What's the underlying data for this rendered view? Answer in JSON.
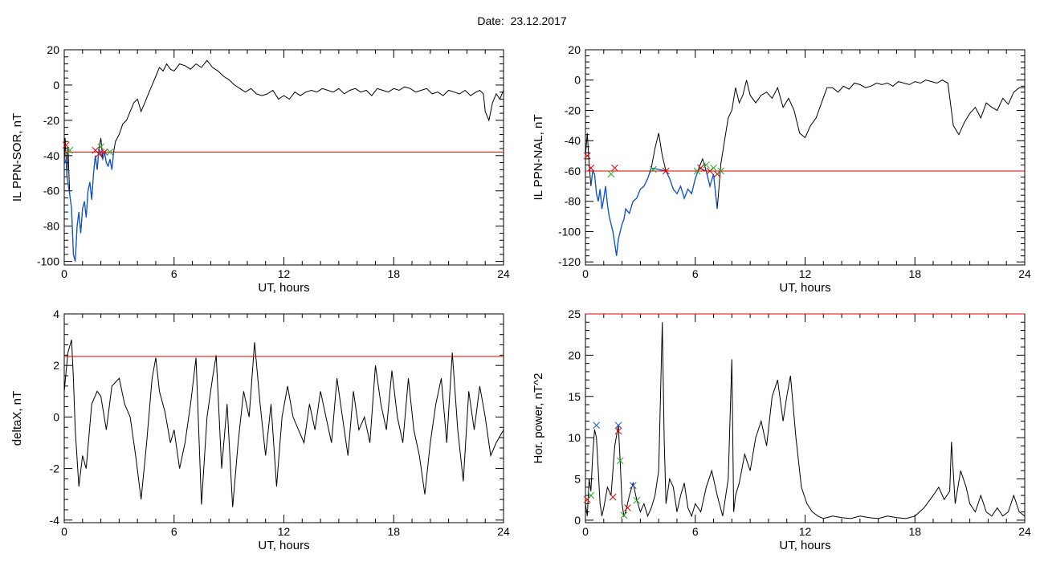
{
  "figure": {
    "date_label": "Date:",
    "date_value": "23.12.2017"
  },
  "colors": {
    "signal": "#000000",
    "threshold": "#e00000",
    "highlight": "#1155cc",
    "marker_red": "#e00000",
    "marker_green": "#22aa22",
    "marker_blue": "#2255dd"
  },
  "chart_data": [
    {
      "id": "sor",
      "type": "line",
      "xlabel": "UT, hours",
      "ylabel": "IL PPN-SOR, nT",
      "xlim": [
        0,
        24
      ],
      "ylim": [
        -102,
        20
      ],
      "xticks": [
        0,
        6,
        12,
        18,
        24
      ],
      "yticks": [
        -100,
        -80,
        -60,
        -40,
        -20,
        0,
        20
      ],
      "threshold": -38,
      "highlight_x": [
        0,
        2.7
      ],
      "series": [
        {
          "x": [
            0,
            0.05,
            0.1,
            0.15,
            0.2,
            0.3,
            0.4,
            0.5,
            0.6,
            0.7,
            0.8,
            0.9,
            1.0,
            1.1,
            1.2,
            1.3,
            1.4,
            1.5,
            1.6,
            1.7,
            1.8,
            1.9,
            2.0,
            2.1,
            2.2,
            2.3,
            2.4,
            2.5,
            2.6,
            2.7,
            2.8,
            3.0,
            3.2,
            3.4,
            3.6,
            3.8,
            4.0,
            4.2,
            4.4,
            4.6,
            4.8,
            5.0,
            5.2,
            5.4,
            5.6,
            5.8,
            6.0,
            6.3,
            6.6,
            6.9,
            7.2,
            7.5,
            7.8,
            8.1,
            8.4,
            8.7,
            9.0,
            9.3,
            9.6,
            9.9,
            10.2,
            10.5,
            10.8,
            11.1,
            11.4,
            11.7,
            12.0,
            12.3,
            12.6,
            12.9,
            13.2,
            13.5,
            13.8,
            14.1,
            14.4,
            14.7,
            15.0,
            15.3,
            15.6,
            15.9,
            16.2,
            16.5,
            16.8,
            17.1,
            17.4,
            17.7,
            18.0,
            18.3,
            18.6,
            18.9,
            19.2,
            19.5,
            19.8,
            20.1,
            20.4,
            20.7,
            21.0,
            21.3,
            21.6,
            21.9,
            22.2,
            22.5,
            22.7,
            22.9,
            23.0,
            23.2,
            23.4,
            23.6,
            23.8,
            24.0
          ],
          "y": [
            -45,
            -30,
            -42,
            -52,
            -35,
            -62,
            -70,
            -96,
            -100,
            -80,
            -72,
            -84,
            -70,
            -66,
            -75,
            -60,
            -55,
            -65,
            -50,
            -40,
            -48,
            -36,
            -30,
            -42,
            -38,
            -44,
            -46,
            -42,
            -48,
            -38,
            -32,
            -28,
            -22,
            -20,
            -15,
            -10,
            -8,
            -15,
            -10,
            -5,
            0,
            5,
            10,
            8,
            12,
            9,
            8,
            12,
            11,
            9,
            12,
            10,
            14,
            10,
            8,
            5,
            3,
            0,
            -2,
            -4,
            -2,
            -5,
            -6,
            -5,
            -3,
            -8,
            -6,
            -8,
            -4,
            -6,
            -4,
            -3,
            -4,
            -2,
            -3,
            -4,
            -2,
            -5,
            -3,
            -2,
            -4,
            -3,
            -6,
            -2,
            -3,
            -4,
            -2,
            -3,
            -1,
            -2,
            -4,
            -3,
            -2,
            -5,
            -4,
            -6,
            -3,
            -4,
            -5,
            -3,
            -6,
            -4,
            -3,
            -5,
            -15,
            -20,
            -10,
            -5,
            -8,
            -3
          ]
        }
      ],
      "markers": [
        {
          "x": 0.1,
          "y": -34,
          "color": "red"
        },
        {
          "x": 0.3,
          "y": -37,
          "color": "green"
        },
        {
          "x": 1.7,
          "y": -37,
          "color": "red"
        },
        {
          "x": 1.9,
          "y": -39,
          "color": "red"
        },
        {
          "x": 2.0,
          "y": -35,
          "color": "green"
        },
        {
          "x": 2.2,
          "y": -38,
          "color": "red"
        },
        {
          "x": 2.5,
          "y": -38,
          "color": "green"
        }
      ]
    },
    {
      "id": "nal",
      "type": "line",
      "xlabel": "UT, hours",
      "ylabel": "IL PPN-NAL, nT",
      "xlim": [
        0,
        24
      ],
      "ylim": [
        -122,
        20
      ],
      "xticks": [
        0,
        6,
        12,
        18,
        24
      ],
      "yticks": [
        -120,
        -100,
        -80,
        -60,
        -40,
        -20,
        0,
        20
      ],
      "threshold": -60,
      "highlight_x": [
        0,
        7.5
      ],
      "series": [
        {
          "x": [
            0,
            0.1,
            0.2,
            0.3,
            0.4,
            0.5,
            0.6,
            0.7,
            0.8,
            0.9,
            1.0,
            1.1,
            1.2,
            1.3,
            1.4,
            1.5,
            1.6,
            1.7,
            1.8,
            1.9,
            2.0,
            2.1,
            2.2,
            2.4,
            2.6,
            2.8,
            3.0,
            3.2,
            3.4,
            3.6,
            3.8,
            4.0,
            4.2,
            4.4,
            4.6,
            4.8,
            5.0,
            5.2,
            5.4,
            5.6,
            5.8,
            6.0,
            6.2,
            6.4,
            6.6,
            6.8,
            7.0,
            7.2,
            7.4,
            7.6,
            7.8,
            8.0,
            8.2,
            8.4,
            8.6,
            8.8,
            9.0,
            9.3,
            9.6,
            9.9,
            10.2,
            10.5,
            10.8,
            11.1,
            11.4,
            11.7,
            12.0,
            12.3,
            12.6,
            12.9,
            13.2,
            13.5,
            13.8,
            14.1,
            14.4,
            14.7,
            15.0,
            15.3,
            15.6,
            15.9,
            16.2,
            16.5,
            16.8,
            17.1,
            17.4,
            17.7,
            18.0,
            18.3,
            18.6,
            18.9,
            19.2,
            19.5,
            19.8,
            20.1,
            20.4,
            20.7,
            21.0,
            21.3,
            21.6,
            21.9,
            22.2,
            22.5,
            22.8,
            23.1,
            23.4,
            23.7,
            24.0
          ],
          "y": [
            -50,
            -35,
            -55,
            -70,
            -60,
            -62,
            -75,
            -80,
            -72,
            -85,
            -78,
            -70,
            -82,
            -90,
            -95,
            -100,
            -108,
            -116,
            -105,
            -100,
            -95,
            -92,
            -85,
            -88,
            -80,
            -78,
            -72,
            -70,
            -65,
            -58,
            -45,
            -35,
            -50,
            -60,
            -65,
            -72,
            -75,
            -70,
            -78,
            -72,
            -75,
            -65,
            -58,
            -52,
            -60,
            -70,
            -62,
            -85,
            -55,
            -40,
            -25,
            -20,
            -5,
            -15,
            -10,
            0,
            -10,
            -15,
            -10,
            -8,
            -12,
            -5,
            -18,
            -12,
            -20,
            -35,
            -38,
            -30,
            -25,
            -15,
            -5,
            -5,
            -8,
            -4,
            -6,
            -2,
            -3,
            -5,
            -4,
            -2,
            -3,
            -2,
            -4,
            -1,
            -2,
            -3,
            -1,
            -2,
            0,
            -1,
            -2,
            0,
            -2,
            -30,
            -36,
            -28,
            -22,
            -18,
            -25,
            -15,
            -18,
            -20,
            -12,
            -16,
            -8,
            -5,
            -5
          ]
        }
      ],
      "markers": [
        {
          "x": 0.1,
          "y": -50,
          "color": "red"
        },
        {
          "x": 0.3,
          "y": -58,
          "color": "red"
        },
        {
          "x": 1.4,
          "y": -62,
          "color": "green"
        },
        {
          "x": 1.6,
          "y": -58,
          "color": "red"
        },
        {
          "x": 3.7,
          "y": -59,
          "color": "green"
        },
        {
          "x": 4.4,
          "y": -60,
          "color": "red"
        },
        {
          "x": 6.1,
          "y": -60,
          "color": "green"
        },
        {
          "x": 6.3,
          "y": -58,
          "color": "red"
        },
        {
          "x": 6.6,
          "y": -56,
          "color": "green"
        },
        {
          "x": 6.8,
          "y": -60,
          "color": "red"
        },
        {
          "x": 7.0,
          "y": -58,
          "color": "green"
        },
        {
          "x": 7.2,
          "y": -62,
          "color": "red"
        },
        {
          "x": 7.4,
          "y": -60,
          "color": "green"
        }
      ]
    },
    {
      "id": "deltax",
      "type": "line",
      "xlabel": "UT, hours",
      "ylabel": "deltaX, nT",
      "xlim": [
        0,
        24
      ],
      "ylim": [
        -4.1,
        4
      ],
      "xticks": [
        0,
        6,
        12,
        18,
        24
      ],
      "yticks": [
        -4,
        -2,
        0,
        2,
        4
      ],
      "threshold": 2.35,
      "highlight_x": null,
      "series": [
        {
          "x": [
            0,
            0.2,
            0.4,
            0.5,
            0.6,
            0.8,
            1.0,
            1.2,
            1.5,
            1.8,
            2.0,
            2.3,
            2.6,
            3.0,
            3.3,
            3.6,
            3.9,
            4.2,
            4.5,
            4.8,
            5.0,
            5.2,
            5.5,
            5.8,
            6.0,
            6.3,
            6.6,
            6.9,
            7.2,
            7.5,
            7.8,
            8.1,
            8.3,
            8.6,
            8.9,
            9.2,
            9.5,
            9.8,
            10.1,
            10.4,
            10.7,
            11.0,
            11.3,
            11.6,
            11.9,
            12.2,
            12.5,
            12.8,
            13.1,
            13.4,
            13.7,
            14.0,
            14.3,
            14.6,
            14.9,
            15.2,
            15.5,
            15.8,
            16.1,
            16.4,
            16.7,
            17.0,
            17.3,
            17.6,
            17.9,
            18.2,
            18.5,
            18.8,
            19.1,
            19.4,
            19.7,
            20.0,
            20.3,
            20.6,
            20.9,
            21.2,
            21.5,
            21.8,
            22.1,
            22.4,
            22.7,
            23.0,
            23.3,
            23.6,
            24.0
          ],
          "y": [
            1.0,
            2.5,
            3.0,
            1.5,
            -0.5,
            -2.7,
            -1.5,
            -2.0,
            0.5,
            1.0,
            0.8,
            -0.5,
            1.2,
            1.5,
            0.5,
            0.0,
            -1.5,
            -3.2,
            -1.0,
            1.5,
            2.3,
            1.0,
            0.2,
            -1.0,
            -0.5,
            -2.0,
            -1.0,
            0.5,
            2.3,
            -3.4,
            0.0,
            1.5,
            2.4,
            -2.0,
            0.5,
            -3.5,
            -1.0,
            1.0,
            0.0,
            2.9,
            0.5,
            -1.5,
            0.5,
            -2.7,
            0.0,
            1.2,
            0.0,
            -0.5,
            -1.0,
            0.5,
            -0.5,
            1.0,
            0.0,
            -1.0,
            1.5,
            0.0,
            -1.5,
            1.0,
            -0.5,
            0.0,
            -1.0,
            2.0,
            0.5,
            -0.5,
            1.8,
            0.0,
            -1.0,
            1.5,
            -0.5,
            -1.5,
            -3.0,
            -1.0,
            0.5,
            1.5,
            -1.0,
            2.5,
            -0.5,
            -2.5,
            1.0,
            -0.5,
            1.2,
            0.0,
            -1.5,
            -1.0,
            -0.5
          ]
        }
      ],
      "markers": []
    },
    {
      "id": "power",
      "type": "line",
      "xlabel": "UT, hours",
      "ylabel": "Hor. power, nT^2",
      "xlim": [
        0,
        24
      ],
      "ylim": [
        -0.3,
        25
      ],
      "xticks": [
        0,
        6,
        12,
        18,
        24
      ],
      "yticks": [
        0,
        5,
        10,
        15,
        20,
        25
      ],
      "threshold": 25,
      "highlight_x": null,
      "series": [
        {
          "x": [
            0,
            0.1,
            0.2,
            0.3,
            0.4,
            0.5,
            0.6,
            0.7,
            0.8,
            0.9,
            1.0,
            1.2,
            1.4,
            1.6,
            1.8,
            1.9,
            2.0,
            2.1,
            2.2,
            2.4,
            2.6,
            2.8,
            3.0,
            3.2,
            3.4,
            3.6,
            3.8,
            4.0,
            4.2,
            4.3,
            4.4,
            4.6,
            4.8,
            5.0,
            5.2,
            5.4,
            5.6,
            5.8,
            6.0,
            6.3,
            6.6,
            6.9,
            7.2,
            7.5,
            7.8,
            8.0,
            8.1,
            8.2,
            8.4,
            8.7,
            9.0,
            9.3,
            9.6,
            9.9,
            10.2,
            10.5,
            10.8,
            11.0,
            11.2,
            11.5,
            11.8,
            12.1,
            12.4,
            12.7,
            13.0,
            13.5,
            14.0,
            14.5,
            15.0,
            15.5,
            16.0,
            16.5,
            17.0,
            17.5,
            18.0,
            18.5,
            19.0,
            19.3,
            19.6,
            19.9,
            20.0,
            20.2,
            20.5,
            20.8,
            21.0,
            21.3,
            21.6,
            21.9,
            22.2,
            22.5,
            22.8,
            23.1,
            23.4,
            23.7,
            24.0
          ],
          "y": [
            2.0,
            0.5,
            5.0,
            3.5,
            8.0,
            11.0,
            10.0,
            6.0,
            2.0,
            0.5,
            1.5,
            4.0,
            3.0,
            9.0,
            11.5,
            7.0,
            2.0,
            0.5,
            1.0,
            3.0,
            4.5,
            2.5,
            1.0,
            2.0,
            0.5,
            1.5,
            3.0,
            6.0,
            24.0,
            10.0,
            2.0,
            5.0,
            4.0,
            1.0,
            3.0,
            4.5,
            1.5,
            0.5,
            2.0,
            1.0,
            4.0,
            6.0,
            3.0,
            0.5,
            5.0,
            19.5,
            1.0,
            3.0,
            4.5,
            8.0,
            6.0,
            10.0,
            12.0,
            9.0,
            15.0,
            17.0,
            12.0,
            15.0,
            17.5,
            10.0,
            4.0,
            2.0,
            1.0,
            0.5,
            0.2,
            0.5,
            0.3,
            0.2,
            0.5,
            0.3,
            0.2,
            0.5,
            0.3,
            0.2,
            0.5,
            1.5,
            3.0,
            4.0,
            2.5,
            3.5,
            9.5,
            2.0,
            6.0,
            4.0,
            2.0,
            1.0,
            3.0,
            1.0,
            0.5,
            1.5,
            0.5,
            1.0,
            3.0,
            1.0,
            0.5
          ]
        }
      ],
      "markers": [
        {
          "x": 0.1,
          "y": 2.5,
          "color": "red"
        },
        {
          "x": 0.3,
          "y": 3.0,
          "color": "green"
        },
        {
          "x": 0.6,
          "y": 11.5,
          "color": "blue"
        },
        {
          "x": 1.5,
          "y": 2.8,
          "color": "red"
        },
        {
          "x": 1.8,
          "y": 11.5,
          "color": "blue"
        },
        {
          "x": 1.8,
          "y": 10.8,
          "color": "red"
        },
        {
          "x": 1.9,
          "y": 7.2,
          "color": "green"
        },
        {
          "x": 2.1,
          "y": 0.6,
          "color": "green"
        },
        {
          "x": 2.3,
          "y": 1.5,
          "color": "red"
        },
        {
          "x": 2.6,
          "y": 4.2,
          "color": "blue"
        },
        {
          "x": 2.8,
          "y": 2.4,
          "color": "green"
        }
      ]
    }
  ]
}
